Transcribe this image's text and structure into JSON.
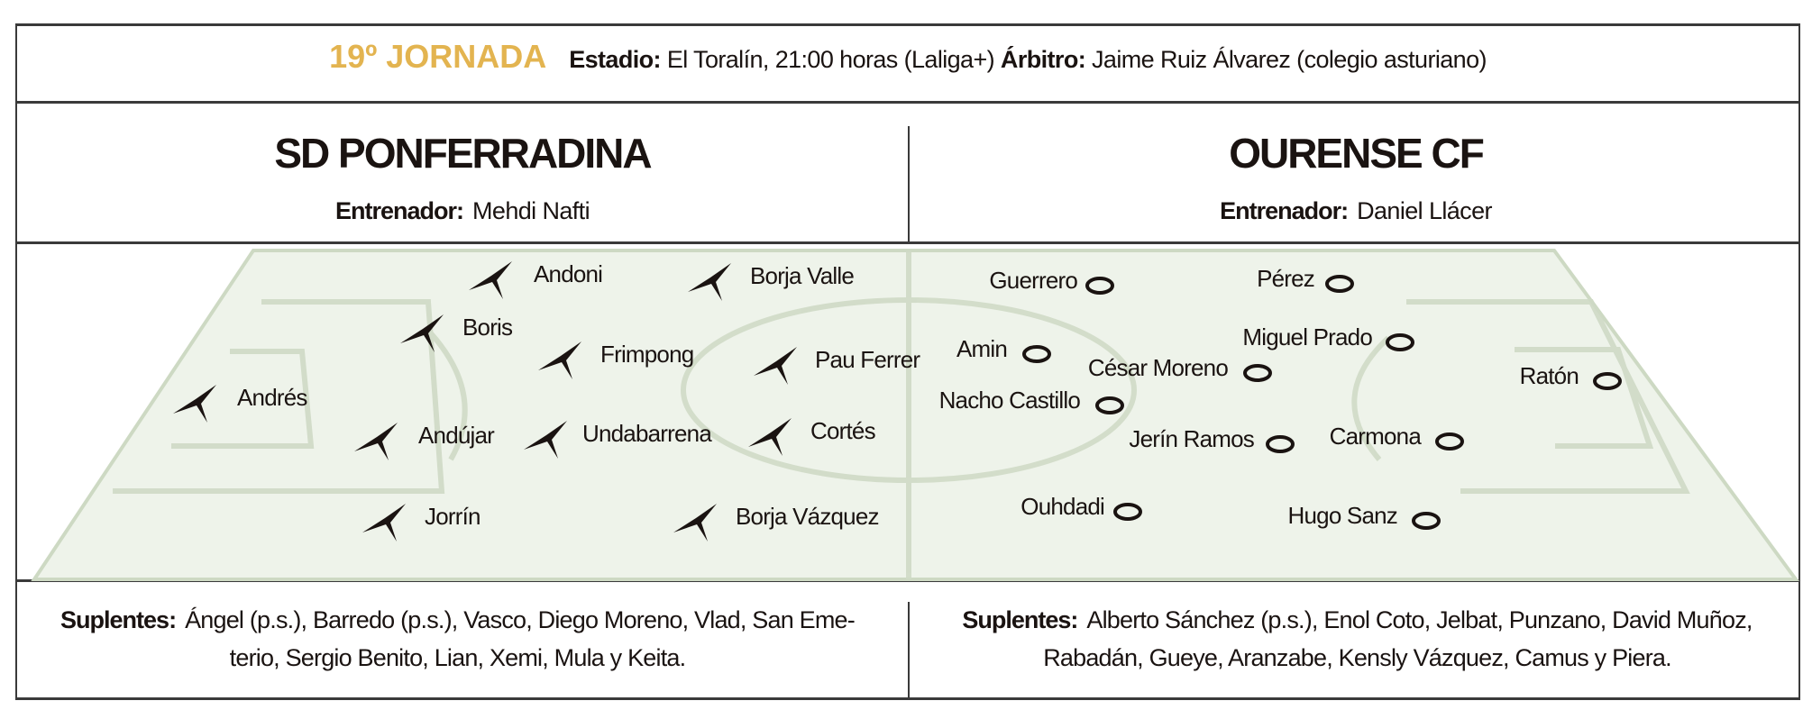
{
  "header": {
    "jornada": "19º JORNADA",
    "stadium_label": "Estadio:",
    "stadium_value": "El Toralín, 21:00 horas (Laliga+)",
    "referee_label": "Árbitro:",
    "referee_value": "Jaime Ruiz Álvarez (colegio asturiano)",
    "accent_color": "#e3b450"
  },
  "home": {
    "name": "SD PONFERRADINA",
    "coach_label": "Entrenador:",
    "coach": "Mehdi Nafti",
    "marker": "star-icon",
    "players": [
      "Andoni",
      "Borja Valle",
      "Boris",
      "Frimpong",
      "Pau Ferrer",
      "Andrés",
      "Andújar",
      "Undabarrena",
      "Cortés",
      "Jorrín",
      "Borja Vázquez"
    ],
    "subs_label": "Suplentes:",
    "subs_lines": [
      "Ángel (p.s.), Barredo (p.s.), Vasco, Diego Moreno, Vlad, San Eme-",
      "terio, Sergio Benito, Lian, Xemi, Mula y Keita."
    ]
  },
  "away": {
    "name": "OURENSE CF",
    "coach_label": "Entrenador:",
    "coach": "Daniel Llácer",
    "marker": "circle-icon",
    "players": [
      "Guerrero",
      "Pérez",
      "Miguel Prado",
      "Amin",
      "César Moreno",
      "Ratón",
      "Nacho Castillo",
      "Jerín Ramos",
      "Carmona",
      "Ouhdadi",
      "Hugo Sanz"
    ],
    "subs_label": "Suplentes:",
    "subs_lines": [
      "Alberto Sánchez (p.s.), Enol Coto, Jelbat, Punzano, David Muñoz,",
      "Rabadán, Gueye, Aranzabe, Kensly Vázquez, Camus y Piera."
    ]
  }
}
